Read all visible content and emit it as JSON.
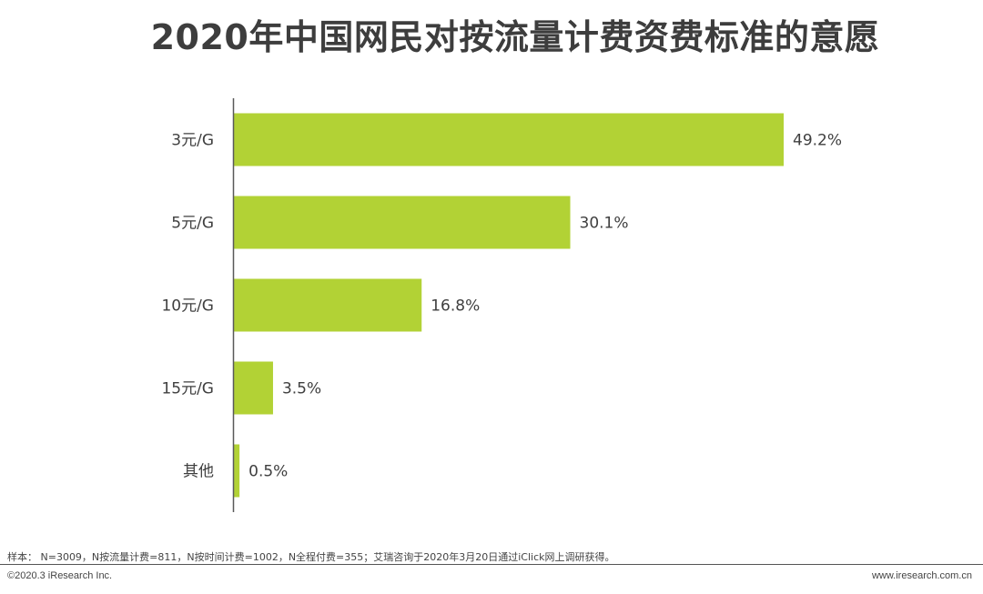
{
  "chart_data": {
    "type": "bar",
    "orientation": "horizontal",
    "title": "2020年中国网民对按流量计费资费标准的意愿",
    "categories": [
      "3元/G",
      "5元/G",
      "10元/G",
      "15元/G",
      "其他"
    ],
    "values": [
      49.2,
      30.1,
      16.8,
      3.5,
      0.5
    ],
    "value_labels": [
      "49.2%",
      "30.1%",
      "16.8%",
      "3.5%",
      "0.5%"
    ],
    "bar_color": "#b2d235",
    "xlim": [
      0,
      50
    ],
    "grid": false,
    "legend": "none"
  },
  "footer": {
    "note": "样本：  N=3009，N按流量计费=811，N按时间计费=1002，N全程付费=355；艾瑞咨询于2020年3月20日通过iClick网上调研获得。",
    "copyright": "©2020.3 iResearch Inc.",
    "url": "www.iresearch.com.cn"
  },
  "colors": {
    "title": "#3d3d3d",
    "axis": "#595959",
    "text": "#3f3f3f"
  }
}
